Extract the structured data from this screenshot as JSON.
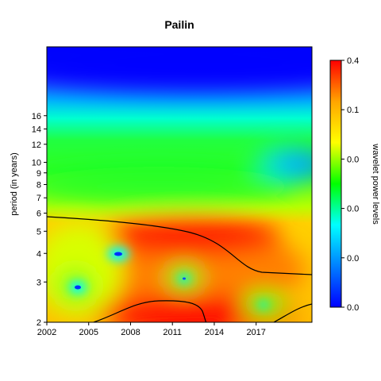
{
  "chart_data": {
    "type": "heatmap",
    "title": "Pailin",
    "xlabel": "",
    "ylabel": "period (in years)",
    "x_ticks": [
      "2002",
      "2005",
      "2008",
      "2011",
      "2014",
      "2017"
    ],
    "xlim": [
      2002,
      2021
    ],
    "y_scale": "log2",
    "y_ticks": [
      2,
      3,
      4,
      5,
      6,
      7,
      8,
      9,
      10,
      12,
      14,
      16
    ],
    "ylim": [
      2,
      32
    ],
    "colorbar": {
      "label": "wavelet power levels",
      "tick_labels": [
        "0.4",
        "0.1",
        "0.0",
        "0.0",
        "0.0",
        "0.0"
      ],
      "colors": [
        "#ff0000",
        "#ffa500",
        "#ffff00",
        "#00ff00",
        "#00ffff",
        "#0080ff",
        "#0000ff"
      ]
    },
    "grid": false,
    "legend": "right"
  }
}
